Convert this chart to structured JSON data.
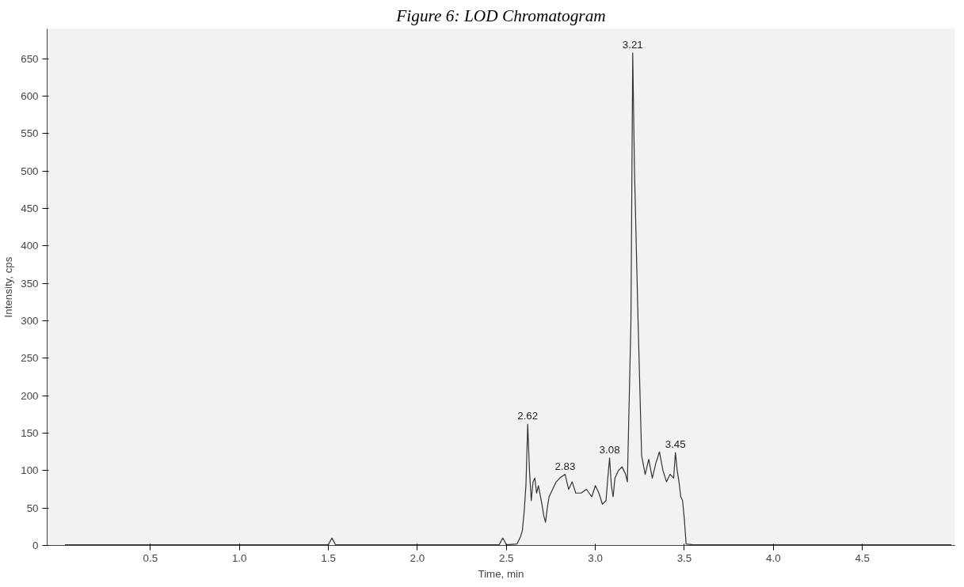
{
  "chart_data": {
    "type": "line",
    "title": "Figure 6: LOD Chromatogram",
    "xlabel": "Time, min",
    "ylabel": "Intensity, cps",
    "x": [
      0.02,
      1.5,
      1.52,
      1.54,
      2.46,
      2.48,
      2.5,
      2.56,
      2.58,
      2.59,
      2.6,
      2.61,
      2.62,
      2.63,
      2.64,
      2.65,
      2.66,
      2.67,
      2.68,
      2.7,
      2.71,
      2.72,
      2.73,
      2.74,
      2.76,
      2.78,
      2.8,
      2.83,
      2.85,
      2.87,
      2.89,
      2.92,
      2.95,
      2.98,
      3.0,
      3.02,
      3.04,
      3.06,
      3.07,
      3.08,
      3.09,
      3.1,
      3.11,
      3.13,
      3.15,
      3.17,
      3.18,
      3.2,
      3.21,
      3.22,
      3.24,
      3.26,
      3.28,
      3.3,
      3.32,
      3.34,
      3.36,
      3.38,
      3.4,
      3.42,
      3.44,
      3.45,
      3.46,
      3.47,
      3.48,
      3.49,
      3.5,
      3.51,
      3.55,
      5.0
    ],
    "series": [
      {
        "color": "#333333",
        "values": [
          1,
          1,
          10,
          1,
          1,
          10,
          1,
          2,
          12,
          20,
          45,
          80,
          162,
          100,
          60,
          85,
          90,
          70,
          80,
          55,
          40,
          31,
          50,
          65,
          75,
          85,
          90,
          95,
          75,
          85,
          70,
          70,
          75,
          65,
          80,
          70,
          55,
          60,
          90,
          117,
          80,
          65,
          90,
          100,
          105,
          95,
          85,
          300,
          658,
          500,
          300,
          120,
          95,
          115,
          90,
          110,
          125,
          100,
          85,
          95,
          90,
          124,
          100,
          85,
          65,
          60,
          35,
          2,
          1,
          1
        ]
      }
    ],
    "annotations": [
      {
        "text": "2.62",
        "x": 2.62,
        "y": 162
      },
      {
        "text": "2.83",
        "x": 2.83,
        "y": 95
      },
      {
        "text": "3.08",
        "x": 3.08,
        "y": 117
      },
      {
        "text": "3.21",
        "x": 3.21,
        "y": 658
      },
      {
        "text": "3.45",
        "x": 3.45,
        "y": 124
      }
    ],
    "xlim": [
      -0.08,
      5.02
    ],
    "ylim": [
      0,
      690
    ],
    "xticks": [
      0.5,
      {
        "value": 1,
        "label": "1.0"
      },
      1.5,
      {
        "value": 2,
        "label": "2.0"
      },
      2.5,
      {
        "value": 3,
        "label": "3.0"
      },
      3.5,
      {
        "value": 4,
        "label": "4.0"
      },
      4.5
    ],
    "yticks": [
      0,
      50,
      100,
      150,
      200,
      250,
      300,
      350,
      400,
      450,
      500,
      550,
      600,
      650
    ],
    "grid": false
  }
}
